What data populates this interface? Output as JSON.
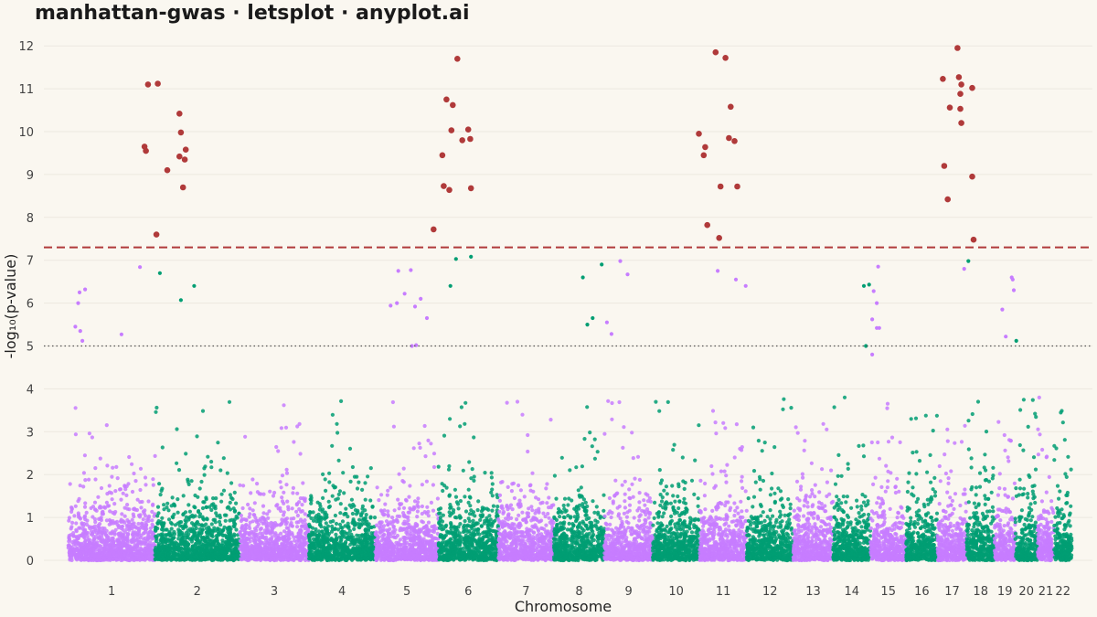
{
  "chart_data": {
    "type": "scatter",
    "title": "manhattan-gwas · letsplot · anyplot.ai",
    "xlabel": "Chromosome",
    "ylabel": "-log₁₀(p-value)",
    "ylim": [
      0,
      12.5
    ],
    "yticks": [
      "0",
      "1",
      "2",
      "3",
      "4",
      "5",
      "6",
      "7",
      "8",
      "9",
      "10",
      "11",
      "12"
    ],
    "grid": true,
    "legend": "none",
    "chromosomes": [
      {
        "label": "1",
        "start": 0,
        "length": 248
      },
      {
        "label": "2",
        "start": 248,
        "length": 242
      },
      {
        "label": "3",
        "start": 490,
        "length": 198
      },
      {
        "label": "4",
        "start": 688,
        "length": 190
      },
      {
        "label": "5",
        "start": 878,
        "length": 181
      },
      {
        "label": "6",
        "start": 1059,
        "length": 171
      },
      {
        "label": "7",
        "start": 1230,
        "length": 159
      },
      {
        "label": "8",
        "start": 1389,
        "length": 145
      },
      {
        "label": "9",
        "start": 1534,
        "length": 138
      },
      {
        "label": "10",
        "start": 1672,
        "length": 134
      },
      {
        "label": "11",
        "start": 1806,
        "length": 135
      },
      {
        "label": "12",
        "start": 1941,
        "length": 133
      },
      {
        "label": "13",
        "start": 2074,
        "length": 114
      },
      {
        "label": "14",
        "start": 2188,
        "length": 107
      },
      {
        "label": "15",
        "start": 2295,
        "length": 102
      },
      {
        "label": "16",
        "start": 2397,
        "length": 90
      },
      {
        "label": "17",
        "start": 2487,
        "length": 83
      },
      {
        "label": "18",
        "start": 2570,
        "length": 80
      },
      {
        "label": "19",
        "start": 2650,
        "length": 59
      },
      {
        "label": "20",
        "start": 2709,
        "length": 64
      },
      {
        "label": "21",
        "start": 2773,
        "length": 47
      },
      {
        "label": "22",
        "start": 2820,
        "length": 51
      }
    ],
    "xlim": [
      -70,
      2930
    ],
    "genome_wide_threshold": 7.3,
    "suggestive_threshold": 5.0,
    "colors": {
      "odd_chromosome": "#C77DFF",
      "even_chromosome": "#009E73",
      "significant": "#B03A3A",
      "threshold_line": "#B03A3A",
      "suggestive_line": "#555555",
      "background": "#FAF7F0"
    },
    "significant_points": [
      [
        218,
        9.65
      ],
      [
        222,
        9.55
      ],
      [
        228,
        11.1
      ],
      [
        256,
        11.12
      ],
      [
        252,
        7.6
      ],
      [
        283,
        9.1
      ],
      [
        318,
        10.42
      ],
      [
        322,
        9.98
      ],
      [
        318,
        9.42
      ],
      [
        328,
        8.7
      ],
      [
        333,
        9.35
      ],
      [
        336,
        9.58
      ],
      [
        1045,
        7.72
      ],
      [
        1070,
        9.45
      ],
      [
        1074,
        8.73
      ],
      [
        1082,
        10.75
      ],
      [
        1090,
        8.64
      ],
      [
        1096,
        10.03
      ],
      [
        1100,
        10.62
      ],
      [
        1113,
        11.7
      ],
      [
        1127,
        9.8
      ],
      [
        1144,
        10.05
      ],
      [
        1150,
        9.83
      ],
      [
        1152,
        8.68
      ],
      [
        1804,
        9.95
      ],
      [
        1818,
        9.45
      ],
      [
        1822,
        9.64
      ],
      [
        1828,
        7.82
      ],
      [
        1852,
        11.85
      ],
      [
        1862,
        7.52
      ],
      [
        1866,
        8.72
      ],
      [
        1880,
        11.72
      ],
      [
        1890,
        9.85
      ],
      [
        1895,
        10.58
      ],
      [
        1906,
        9.78
      ],
      [
        1914,
        8.72
      ],
      [
        2502,
        11.23
      ],
      [
        2506,
        9.2
      ],
      [
        2516,
        8.42
      ],
      [
        2522,
        10.56
      ],
      [
        2544,
        11.95
      ],
      [
        2548,
        11.27
      ],
      [
        2552,
        10.88
      ],
      [
        2555,
        11.1
      ],
      [
        2552,
        10.53
      ],
      [
        2555,
        10.2
      ],
      [
        2586,
        11.02
      ],
      [
        2586,
        8.95
      ],
      [
        2590,
        7.48
      ]
    ],
    "suggestive_points": [
      [
        20,
        5.45
      ],
      [
        28,
        6.0
      ],
      [
        32,
        6.25
      ],
      [
        34,
        5.35
      ],
      [
        40,
        5.12
      ],
      [
        48,
        6.32
      ],
      [
        152,
        5.27
      ],
      [
        205,
        6.84
      ],
      [
        262,
        6.7
      ],
      [
        322,
        6.07
      ],
      [
        360,
        6.4
      ],
      [
        922,
        5.94
      ],
      [
        944,
        6.75
      ],
      [
        940,
        6.0
      ],
      [
        962,
        6.22
      ],
      [
        980,
        6.77
      ],
      [
        983,
        5.0
      ],
      [
        992,
        5.92
      ],
      [
        995,
        5.02
      ],
      [
        1008,
        6.1
      ],
      [
        1026,
        5.65
      ],
      [
        1093,
        6.4
      ],
      [
        1109,
        7.03
      ],
      [
        1152,
        7.08
      ],
      [
        1472,
        6.6
      ],
      [
        1485,
        5.5
      ],
      [
        1500,
        5.65
      ],
      [
        1526,
        6.9
      ],
      [
        1541,
        5.55
      ],
      [
        1554,
        5.28
      ],
      [
        1579,
        6.98
      ],
      [
        1600,
        6.67
      ],
      [
        1858,
        6.75
      ],
      [
        1910,
        6.55
      ],
      [
        1938,
        6.4
      ],
      [
        2276,
        6.4
      ],
      [
        2291,
        6.43
      ],
      [
        2300,
        5.62
      ],
      [
        2304,
        6.28
      ],
      [
        2313,
        6.0
      ],
      [
        2317,
        6.85
      ],
      [
        2313,
        5.42
      ],
      [
        2320,
        5.42
      ],
      [
        2282,
        5.0
      ],
      [
        2300,
        4.8
      ],
      [
        2563,
        6.8
      ],
      [
        2575,
        6.98
      ],
      [
        2672,
        5.85
      ],
      [
        2682,
        5.22
      ],
      [
        2699,
        6.6
      ],
      [
        2702,
        6.55
      ],
      [
        2705,
        6.3
      ],
      [
        2712,
        5.12
      ]
    ]
  }
}
